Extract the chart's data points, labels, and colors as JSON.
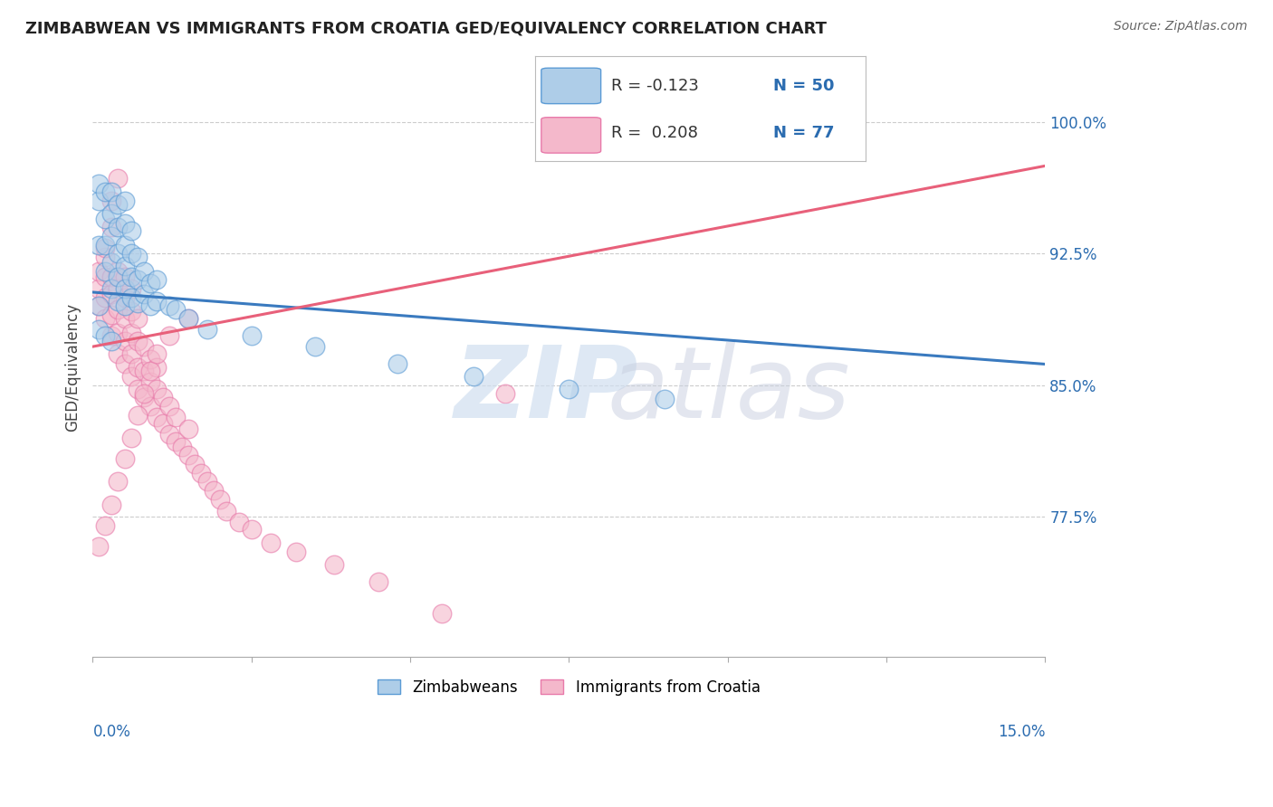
{
  "title": "ZIMBABWEAN VS IMMIGRANTS FROM CROATIA GED/EQUIVALENCY CORRELATION CHART",
  "source": "Source: ZipAtlas.com",
  "ylabel": "GED/Equivalency",
  "ytick_labels": [
    "77.5%",
    "85.0%",
    "92.5%",
    "100.0%"
  ],
  "ytick_values": [
    0.775,
    0.85,
    0.925,
    1.0
  ],
  "xlim": [
    0.0,
    0.15
  ],
  "ylim": [
    0.695,
    1.025
  ],
  "legend_label_blue": "Zimbabweans",
  "legend_label_pink": "Immigrants from Croatia",
  "blue_color": "#aecde8",
  "pink_color": "#f4b8cb",
  "blue_edge_color": "#5b9bd5",
  "pink_edge_color": "#e87aaa",
  "blue_line_color": "#3a7abf",
  "pink_line_color": "#e8607a",
  "blue_scatter_x": [
    0.001,
    0.001,
    0.001,
    0.002,
    0.002,
    0.002,
    0.002,
    0.003,
    0.003,
    0.003,
    0.003,
    0.003,
    0.004,
    0.004,
    0.004,
    0.004,
    0.004,
    0.005,
    0.005,
    0.005,
    0.005,
    0.005,
    0.005,
    0.006,
    0.006,
    0.006,
    0.006,
    0.007,
    0.007,
    0.007,
    0.008,
    0.008,
    0.009,
    0.009,
    0.01,
    0.01,
    0.012,
    0.013,
    0.015,
    0.018,
    0.025,
    0.035,
    0.048,
    0.06,
    0.075,
    0.09,
    0.001,
    0.001,
    0.002,
    0.003
  ],
  "blue_scatter_y": [
    0.93,
    0.955,
    0.965,
    0.915,
    0.93,
    0.945,
    0.96,
    0.905,
    0.92,
    0.935,
    0.948,
    0.96,
    0.898,
    0.912,
    0.925,
    0.94,
    0.953,
    0.895,
    0.905,
    0.918,
    0.93,
    0.942,
    0.955,
    0.9,
    0.912,
    0.925,
    0.938,
    0.897,
    0.91,
    0.923,
    0.902,
    0.915,
    0.895,
    0.908,
    0.898,
    0.91,
    0.895,
    0.893,
    0.888,
    0.882,
    0.878,
    0.872,
    0.862,
    0.855,
    0.848,
    0.842,
    0.895,
    0.882,
    0.878,
    0.875
  ],
  "pink_scatter_x": [
    0.001,
    0.001,
    0.001,
    0.002,
    0.002,
    0.002,
    0.002,
    0.003,
    0.003,
    0.003,
    0.003,
    0.004,
    0.004,
    0.004,
    0.004,
    0.004,
    0.005,
    0.005,
    0.005,
    0.005,
    0.005,
    0.006,
    0.006,
    0.006,
    0.006,
    0.006,
    0.007,
    0.007,
    0.007,
    0.007,
    0.008,
    0.008,
    0.008,
    0.009,
    0.009,
    0.009,
    0.01,
    0.01,
    0.01,
    0.011,
    0.011,
    0.012,
    0.012,
    0.013,
    0.013,
    0.014,
    0.015,
    0.015,
    0.016,
    0.017,
    0.018,
    0.019,
    0.02,
    0.021,
    0.023,
    0.025,
    0.028,
    0.032,
    0.038,
    0.045,
    0.002,
    0.003,
    0.003,
    0.004,
    0.001,
    0.002,
    0.003,
    0.004,
    0.005,
    0.006,
    0.007,
    0.008,
    0.009,
    0.01,
    0.012,
    0.015,
    0.055,
    0.065
  ],
  "pink_scatter_y": [
    0.895,
    0.905,
    0.915,
    0.888,
    0.9,
    0.912,
    0.923,
    0.878,
    0.89,
    0.902,
    0.912,
    0.868,
    0.88,
    0.893,
    0.905,
    0.915,
    0.862,
    0.875,
    0.888,
    0.9,
    0.912,
    0.855,
    0.868,
    0.88,
    0.892,
    0.905,
    0.848,
    0.86,
    0.875,
    0.888,
    0.843,
    0.858,
    0.872,
    0.838,
    0.852,
    0.865,
    0.832,
    0.848,
    0.86,
    0.828,
    0.843,
    0.822,
    0.838,
    0.818,
    0.832,
    0.815,
    0.81,
    0.825,
    0.805,
    0.8,
    0.795,
    0.79,
    0.785,
    0.778,
    0.772,
    0.768,
    0.76,
    0.755,
    0.748,
    0.738,
    0.928,
    0.94,
    0.955,
    0.968,
    0.758,
    0.77,
    0.782,
    0.795,
    0.808,
    0.82,
    0.833,
    0.845,
    0.858,
    0.868,
    0.878,
    0.888,
    0.72,
    0.845
  ],
  "blue_line_x": [
    0.0,
    0.15
  ],
  "blue_line_y": [
    0.903,
    0.862
  ],
  "pink_line_x": [
    0.0,
    0.15
  ],
  "pink_line_y": [
    0.872,
    0.975
  ]
}
